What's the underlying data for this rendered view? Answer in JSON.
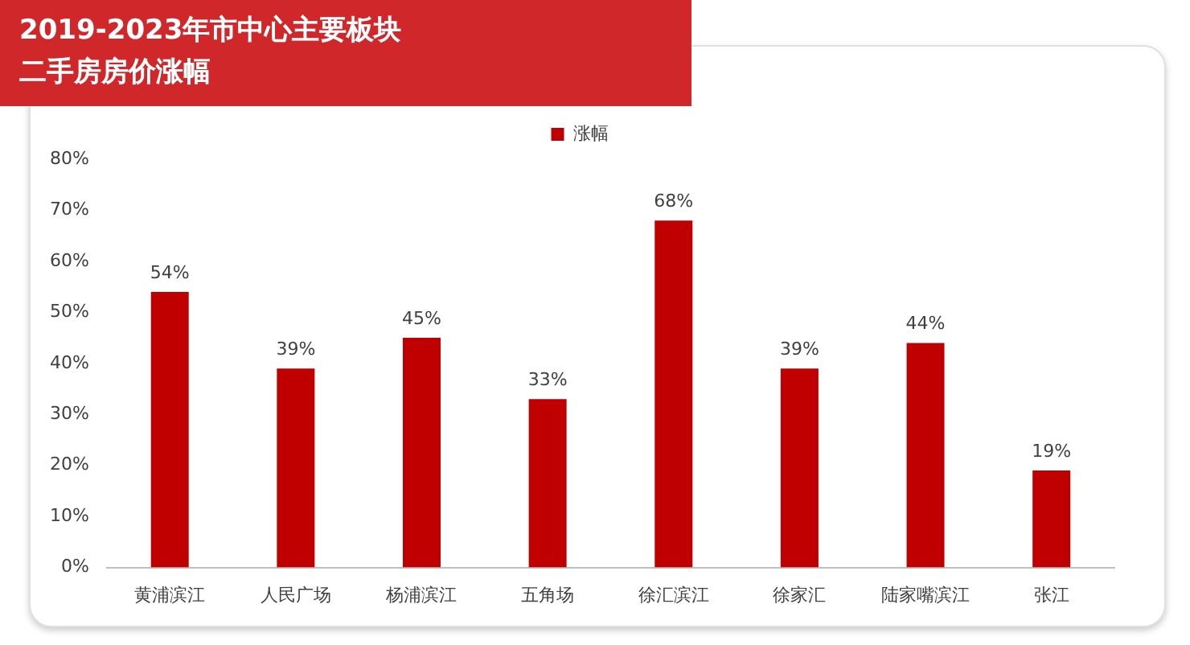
{
  "chart_data": {
    "type": "bar",
    "title": "2019-2023年市中心主要板块二手房房价涨幅",
    "categories": [
      "黄浦滨江",
      "人民广场",
      "杨浦滨江",
      "五角场",
      "徐汇滨江",
      "徐家汇",
      "陆家嘴滨江",
      "张江"
    ],
    "series": [
      {
        "name": "涨幅",
        "color": "#c00000",
        "values": [
          54,
          39,
          45,
          33,
          68,
          39,
          44,
          19
        ],
        "value_labels": [
          "54%",
          "39%",
          "45%",
          "33%",
          "68%",
          "39%",
          "44%",
          "19%"
        ]
      }
    ],
    "ylim": [
      0,
      80
    ],
    "yticks": [
      {
        "value": 0,
        "label": "0%"
      },
      {
        "value": 10,
        "label": "10%"
      },
      {
        "value": 20,
        "label": "20%"
      },
      {
        "value": 30,
        "label": "30%"
      },
      {
        "value": 40,
        "label": "40%"
      },
      {
        "value": 50,
        "label": "50%"
      },
      {
        "value": 60,
        "label": "60%"
      },
      {
        "value": 70,
        "label": "70%"
      },
      {
        "value": 80,
        "label": "80%"
      }
    ],
    "grid": false,
    "legend": "top"
  }
}
